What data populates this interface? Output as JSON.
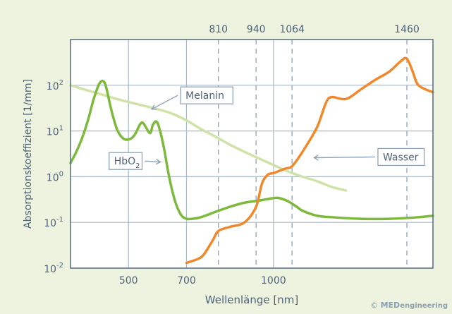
{
  "chart_data": {
    "type": "line",
    "title": "",
    "xlabel": "Wellenlänge [nm]",
    "ylabel": "Absorptionskoeffizient [1/mm]",
    "y_scale": "log",
    "xlim": [
      300,
      1550
    ],
    "ylim": [
      0.01,
      1000
    ],
    "x_ticks": [
      "500",
      "700",
      "1000"
    ],
    "y_ticks": [
      {
        "base": "10",
        "exp": "2"
      },
      {
        "base": "10",
        "exp": "1"
      },
      {
        "base": "10",
        "exp": "0"
      },
      {
        "base": "10",
        "exp": "-1"
      },
      {
        "base": "10",
        "exp": "-2"
      }
    ],
    "reference_lines": [
      {
        "label": "810",
        "x": 810
      },
      {
        "label": "940",
        "x": 940
      },
      {
        "label": "1064",
        "x": 1064
      },
      {
        "label": "1460",
        "x": 1460
      }
    ],
    "series": [
      {
        "name": "Melanin",
        "color": "#cfe3a8",
        "points": [
          [
            300,
            100
          ],
          [
            350,
            80
          ],
          [
            400,
            65
          ],
          [
            450,
            52
          ],
          [
            500,
            43
          ],
          [
            550,
            36
          ],
          [
            600,
            30
          ],
          [
            650,
            24
          ],
          [
            700,
            17
          ],
          [
            750,
            11
          ],
          [
            800,
            7.5
          ],
          [
            850,
            5
          ],
          [
            900,
            3.5
          ],
          [
            950,
            2.5
          ],
          [
            1000,
            1.8
          ],
          [
            1050,
            1.3
          ],
          [
            1100,
            1
          ],
          [
            1150,
            0.8
          ],
          [
            1200,
            0.6
          ],
          [
            1250,
            0.5
          ]
        ]
      },
      {
        "name": "HbO",
        "name_sub": "2",
        "color": "#7db93a",
        "points": [
          [
            300,
            2
          ],
          [
            320,
            3.5
          ],
          [
            340,
            7
          ],
          [
            360,
            17
          ],
          [
            380,
            50
          ],
          [
            400,
            110
          ],
          [
            415,
            120
          ],
          [
            425,
            80
          ],
          [
            440,
            30
          ],
          [
            460,
            11
          ],
          [
            480,
            7
          ],
          [
            500,
            6.5
          ],
          [
            520,
            8
          ],
          [
            540,
            14
          ],
          [
            550,
            15
          ],
          [
            560,
            12
          ],
          [
            575,
            9
          ],
          [
            585,
            14
          ],
          [
            600,
            15
          ],
          [
            620,
            5
          ],
          [
            640,
            1
          ],
          [
            660,
            0.3
          ],
          [
            680,
            0.15
          ],
          [
            700,
            0.12
          ],
          [
            720,
            0.12
          ],
          [
            750,
            0.13
          ],
          [
            800,
            0.17
          ],
          [
            850,
            0.22
          ],
          [
            900,
            0.27
          ],
          [
            950,
            0.3
          ],
          [
            1000,
            0.34
          ],
          [
            1020,
            0.34
          ],
          [
            1050,
            0.29
          ],
          [
            1080,
            0.22
          ],
          [
            1100,
            0.18
          ],
          [
            1150,
            0.14
          ],
          [
            1200,
            0.13
          ],
          [
            1300,
            0.12
          ],
          [
            1400,
            0.12
          ],
          [
            1500,
            0.13
          ],
          [
            1550,
            0.14
          ]
        ]
      },
      {
        "name": "Wasser",
        "color": "#f0892b",
        "points": [
          [
            700,
            0.013
          ],
          [
            740,
            0.016
          ],
          [
            760,
            0.02
          ],
          [
            790,
            0.04
          ],
          [
            810,
            0.065
          ],
          [
            850,
            0.08
          ],
          [
            900,
            0.1
          ],
          [
            940,
            0.22
          ],
          [
            960,
            0.7
          ],
          [
            980,
            1.1
          ],
          [
            1000,
            1.2
          ],
          [
            1040,
            1.5
          ],
          [
            1064,
            1.7
          ],
          [
            1100,
            3.5
          ],
          [
            1150,
            12
          ],
          [
            1180,
            40
          ],
          [
            1200,
            55
          ],
          [
            1250,
            50
          ],
          [
            1300,
            80
          ],
          [
            1350,
            130
          ],
          [
            1400,
            200
          ],
          [
            1440,
            340
          ],
          [
            1460,
            380
          ],
          [
            1480,
            200
          ],
          [
            1500,
            100
          ],
          [
            1550,
            70
          ]
        ]
      }
    ]
  },
  "copyright": {
    "symbol": "©",
    "brand": "MED",
    "suffix": "engineering"
  }
}
